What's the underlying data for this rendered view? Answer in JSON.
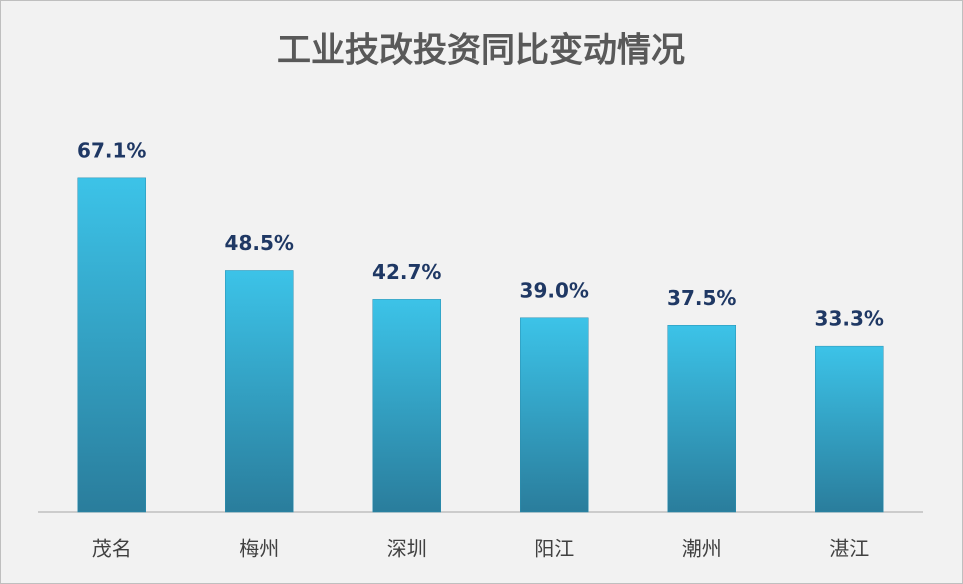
{
  "chart_data": {
    "type": "bar",
    "title": "工业技改投资同比变动情况",
    "categories": [
      "茂名",
      "梅州",
      "深圳",
      "阳江",
      "潮州",
      "湛江"
    ],
    "values": [
      67.1,
      48.5,
      42.7,
      39.0,
      37.5,
      33.3
    ],
    "value_labels": [
      "67.1%",
      "48.5%",
      "42.7%",
      "39.0%",
      "37.5%",
      "33.3%"
    ],
    "color": "#3cc3e8"
  }
}
